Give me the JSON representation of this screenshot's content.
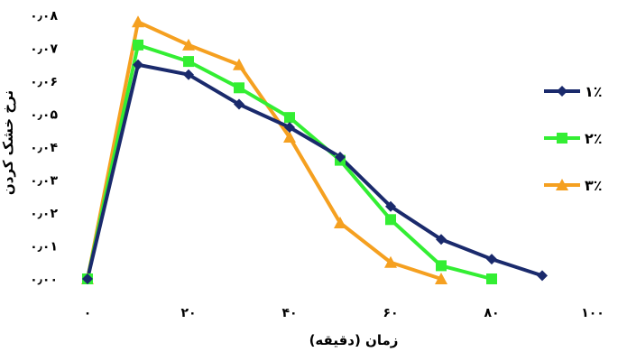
{
  "chart_data": {
    "type": "line",
    "xlabel": "زمان (دقیقه)",
    "ylabel": "نرخ خشک کردن",
    "xlim": [
      0,
      100
    ],
    "ylim": [
      0,
      0.08
    ],
    "x_ticks": [
      0,
      20,
      40,
      60,
      80,
      100
    ],
    "x_tick_labels": [
      "۰",
      "۲۰",
      "۴۰",
      "۶۰",
      "۸۰",
      "۱۰۰"
    ],
    "y_ticks": [
      0,
      0.01,
      0.02,
      0.03,
      0.04,
      0.05,
      0.06,
      0.07,
      0.08
    ],
    "y_tick_labels": [
      "۰٫۰۰",
      "۰٫۰۱",
      "۰٫۰۲",
      "۰٫۰۳",
      "۰٫۰۴",
      "۰٫۰۵",
      "۰٫۰۶",
      "۰٫۰۷",
      "۰٫۰۸"
    ],
    "grid": false,
    "legend_position": "right",
    "series": [
      {
        "name": "۱٪",
        "color": "#1a2a6c",
        "marker": "diamond",
        "x": [
          0,
          10,
          20,
          30,
          40,
          50,
          60,
          70,
          80,
          90
        ],
        "y": [
          0.0,
          0.065,
          0.062,
          0.053,
          0.046,
          0.037,
          0.022,
          0.012,
          0.006,
          0.001
        ]
      },
      {
        "name": "۲٪",
        "color": "#33ee33",
        "marker": "square",
        "x": [
          0,
          10,
          20,
          30,
          40,
          50,
          60,
          70,
          80
        ],
        "y": [
          0.0,
          0.071,
          0.066,
          0.058,
          0.049,
          0.036,
          0.018,
          0.004,
          0.0
        ]
      },
      {
        "name": "۳٪",
        "color": "#f5a020",
        "marker": "triangle",
        "x": [
          0,
          10,
          20,
          30,
          40,
          50,
          60,
          70
        ],
        "y": [
          0.0,
          0.078,
          0.071,
          0.065,
          0.043,
          0.017,
          0.005,
          0.0
        ]
      }
    ]
  }
}
